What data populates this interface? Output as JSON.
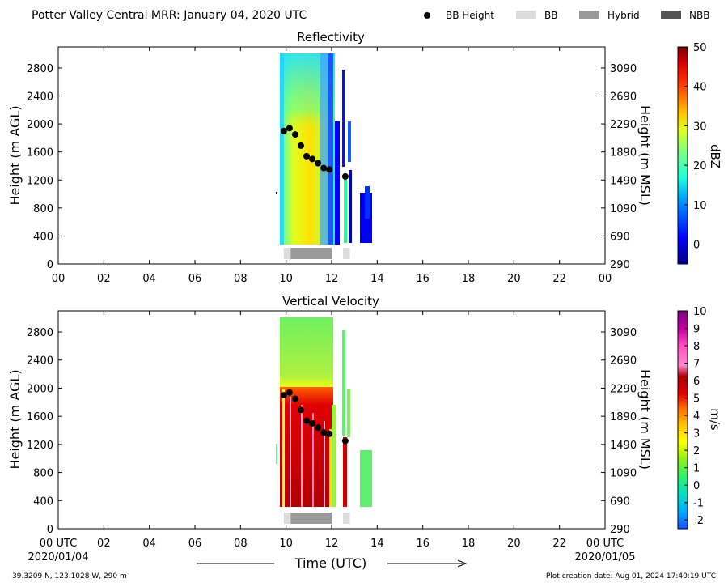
{
  "header": {
    "title": "Potter Valley Central MRR:  January 04, 2020 UTC",
    "legend": [
      {
        "label": "BB Height",
        "kind": "dot",
        "color": "#000000"
      },
      {
        "label": "BB",
        "kind": "swatch",
        "color": "#dcdcdc"
      },
      {
        "label": "Hybrid",
        "kind": "swatch",
        "color": "#999999"
      },
      {
        "label": "NBB",
        "kind": "swatch",
        "color": "#555555"
      }
    ]
  },
  "footer": {
    "start_label": "00 UTC",
    "start_date": "2020/01/04",
    "end_label": "00 UTC",
    "end_date": "2020/01/05",
    "time_label": "Time (UTC)",
    "location": "39.3209 N, 123.1028 W, 290 m",
    "creation": "Plot creation date: Aug 01, 2024 17:40:19 UTC"
  },
  "chart_data": [
    {
      "type": "heatmap",
      "title": "Reflectivity",
      "xlabel": "",
      "ylabel": "Height (m AGL)",
      "y2label": "Height (m MSL)",
      "xlim": [
        0,
        24
      ],
      "ylim": [
        0,
        3100
      ],
      "x_ticks": [
        "00",
        "02",
        "04",
        "06",
        "08",
        "10",
        "12",
        "14",
        "16",
        "18",
        "20",
        "22",
        "00"
      ],
      "y_ticks": [
        0,
        400,
        800,
        1200,
        1600,
        2000,
        2400,
        2800
      ],
      "y2_ticks": [
        290,
        690,
        1090,
        1490,
        1890,
        2290,
        2690,
        3090
      ],
      "colorbar": {
        "label": "dBZ",
        "range": [
          -5,
          50
        ],
        "ticks": [
          0,
          10,
          20,
          30,
          40,
          50
        ]
      },
      "bb_height": {
        "x": [
          9.9,
          10.15,
          10.4,
          10.65,
          10.9,
          11.15,
          11.4,
          11.65,
          11.9,
          12.6
        ],
        "y": [
          1900,
          1940,
          1850,
          1690,
          1540,
          1500,
          1440,
          1370,
          1350,
          1250
        ]
      },
      "bb_classification": [
        {
          "class": "BB",
          "start": 9.9,
          "end": 10.2
        },
        {
          "class": "Hybrid",
          "start": 10.2,
          "end": 12.0
        },
        {
          "class": "BB",
          "start": 12.5,
          "end": 12.8
        }
      ]
    },
    {
      "type": "heatmap",
      "title": "Vertical Velocity",
      "xlabel": "Time (UTC)",
      "ylabel": "Height (m AGL)",
      "y2label": "Height (m MSL)",
      "xlim": [
        0,
        24
      ],
      "ylim": [
        0,
        3100
      ],
      "x_ticks": [
        "00 UTC",
        "02",
        "04",
        "06",
        "08",
        "10",
        "12",
        "14",
        "16",
        "18",
        "20",
        "22",
        "00 UTC"
      ],
      "y_ticks": [
        0,
        400,
        800,
        1200,
        1600,
        2000,
        2400,
        2800
      ],
      "y2_ticks": [
        290,
        690,
        1090,
        1490,
        1890,
        2290,
        2690,
        3090
      ],
      "colorbar": {
        "label": "m/s",
        "range": [
          -2.5,
          10
        ],
        "ticks": [
          -2,
          -1,
          0,
          1,
          2,
          3,
          4,
          5,
          6,
          7,
          8,
          9,
          10
        ]
      },
      "bb_height": {
        "x": [
          9.9,
          10.15,
          10.4,
          10.65,
          10.9,
          11.15,
          11.4,
          11.65,
          11.9,
          12.6
        ],
        "y": [
          1900,
          1940,
          1850,
          1690,
          1540,
          1500,
          1440,
          1370,
          1350,
          1250
        ]
      },
      "bb_classification": [
        {
          "class": "BB",
          "start": 9.9,
          "end": 10.2
        },
        {
          "class": "Hybrid",
          "start": 10.2,
          "end": 12.0
        },
        {
          "class": "BB",
          "start": 12.5,
          "end": 12.8
        }
      ]
    }
  ]
}
